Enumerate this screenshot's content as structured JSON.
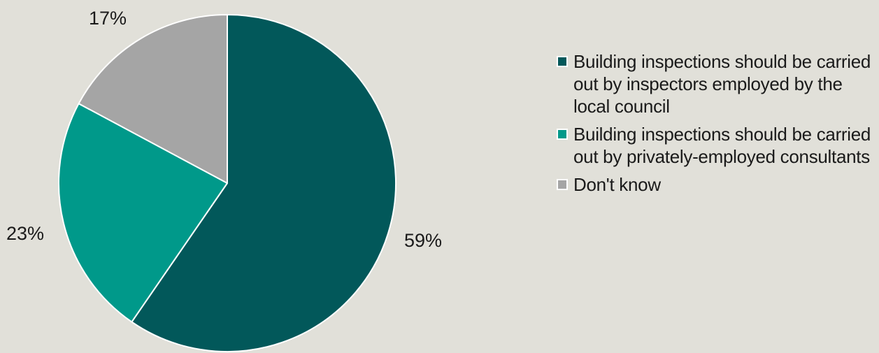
{
  "chart_data": {
    "type": "pie",
    "slices": [
      {
        "name": "Building inspections should be carried out by inspectors employed by the local council",
        "value": 59,
        "label": "59%",
        "color": "#02585a"
      },
      {
        "name": "Building inspections should be carried out by privately-employed consultants",
        "value": 23,
        "label": "23%",
        "color": "#00998a"
      },
      {
        "name": "Don't know",
        "value": 17,
        "label": "17%",
        "color": "#a5a5a5"
      }
    ],
    "legend_position": "right"
  },
  "legend": {
    "items": [
      {
        "label": "Building inspections should be carried out by inspectors employed by the local council",
        "color": "#02585a"
      },
      {
        "label": "Building inspections should be carried out by privately-employed consultants",
        "color": "#00998a"
      },
      {
        "label": "Don't know",
        "color": "#a5a5a5"
      }
    ]
  },
  "colors": {
    "background": "#e1e0d9",
    "slice_border": "#ffffff"
  }
}
